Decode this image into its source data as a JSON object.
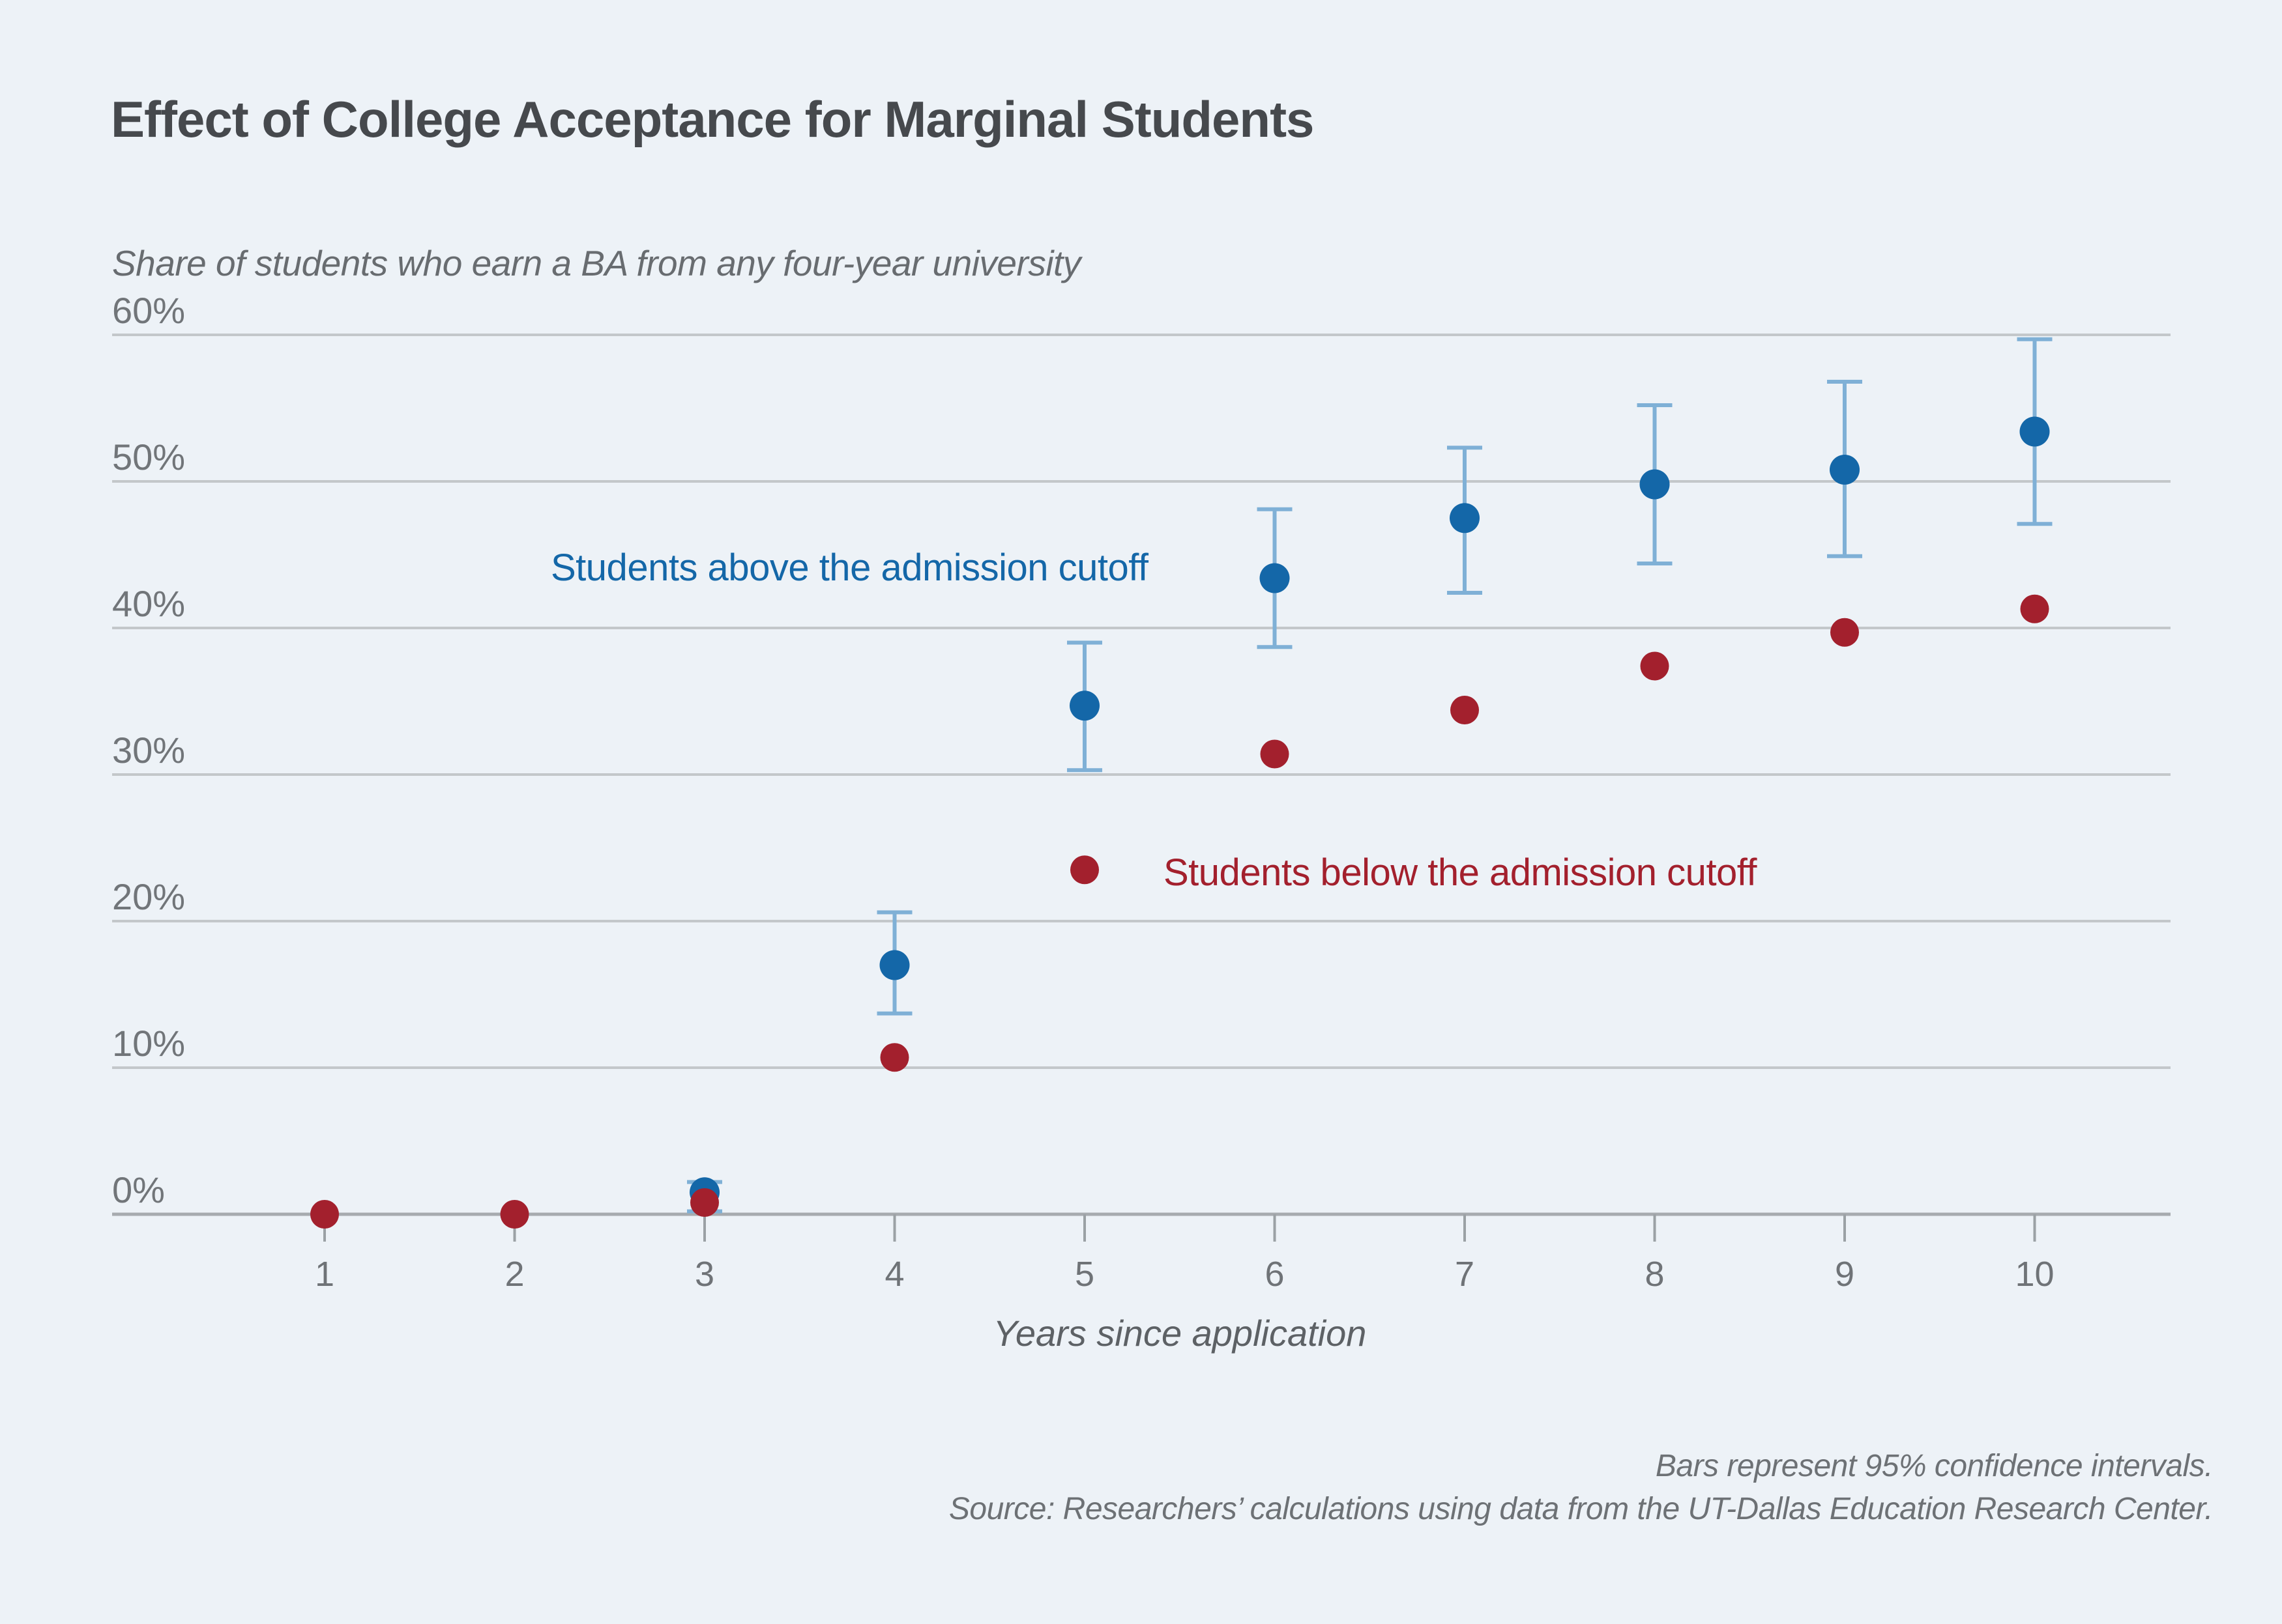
{
  "page": {
    "background_color": "#edf2f7"
  },
  "chart_data": {
    "type": "scatter",
    "title": "Effect of College Acceptance for Marginal Students",
    "ylabel": "Share of students who earn a BA from any four-year university",
    "xlabel": "Years since application",
    "legend_position": "inline-labels",
    "grid": true,
    "ylim": [
      0,
      60
    ],
    "xlim": [
      1,
      10
    ],
    "yticks": [
      {
        "v": 60,
        "label": "60%"
      },
      {
        "v": 50,
        "label": "50%"
      },
      {
        "v": 40,
        "label": "40%"
      },
      {
        "v": 30,
        "label": "30%"
      },
      {
        "v": 20,
        "label": "20%"
      },
      {
        "v": 10,
        "label": "10%"
      },
      {
        "v": 0,
        "label": "0%"
      }
    ],
    "xticks": [
      {
        "v": 1,
        "label": "1"
      },
      {
        "v": 2,
        "label": "2"
      },
      {
        "v": 3,
        "label": "3"
      },
      {
        "v": 4,
        "label": "4"
      },
      {
        "v": 5,
        "label": "5"
      },
      {
        "v": 6,
        "label": "6"
      },
      {
        "v": 7,
        "label": "7"
      },
      {
        "v": 8,
        "label": "8"
      },
      {
        "v": 9,
        "label": "9"
      },
      {
        "v": 10,
        "label": "10"
      }
    ],
    "series": [
      {
        "id": "above",
        "name": "Students above the admission cutoff",
        "color": "#1467a8",
        "ci_color": "#7fb0d6",
        "points": [
          {
            "x": 3,
            "y": 1.5,
            "lo": 0.2,
            "hi": 2.2
          },
          {
            "x": 4,
            "y": 17.0,
            "lo": 13.7,
            "hi": 20.6
          },
          {
            "x": 5,
            "y": 34.7,
            "lo": 30.3,
            "hi": 39.0
          },
          {
            "x": 6,
            "y": 43.4,
            "lo": 38.7,
            "hi": 48.1
          },
          {
            "x": 7,
            "y": 47.5,
            "lo": 42.4,
            "hi": 52.3
          },
          {
            "x": 8,
            "y": 49.8,
            "lo": 44.4,
            "hi": 55.2
          },
          {
            "x": 9,
            "y": 50.8,
            "lo": 44.9,
            "hi": 56.8
          },
          {
            "x": 10,
            "y": 53.4,
            "lo": 47.1,
            "hi": 59.7
          }
        ]
      },
      {
        "id": "below",
        "name": "Students below the admission cutoff",
        "color": "#a3202d",
        "points": [
          {
            "x": 1,
            "y": 0
          },
          {
            "x": 2,
            "y": 0
          },
          {
            "x": 3,
            "y": 0.8
          },
          {
            "x": 4,
            "y": 10.7
          },
          {
            "x": 5,
            "y": 23.5
          },
          {
            "x": 6,
            "y": 31.4
          },
          {
            "x": 7,
            "y": 34.4
          },
          {
            "x": 8,
            "y": 37.4
          },
          {
            "x": 9,
            "y": 39.7
          },
          {
            "x": 10,
            "y": 41.3
          }
        ]
      }
    ],
    "annotations": [
      "Bars represent 95% confidence intervals.",
      "Source: Researchers’ calculations using data from the UT-Dallas Education Research Center."
    ]
  }
}
